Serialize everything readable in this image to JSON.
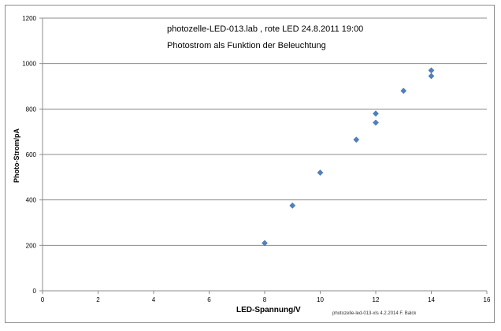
{
  "chart_data": {
    "type": "scatter",
    "title": "photozelle-LED-013.lab , rote LED  24.8.2011 19:00",
    "subtitle": "Photostrom als Funktion der Beleuchtung",
    "xlabel": "LED-Spannung/V",
    "ylabel": "Photo-Strom/pA",
    "annotation": "photozelle-led-013-xls 4.2.2014 F. Balck",
    "xlim": [
      0,
      16
    ],
    "ylim": [
      0,
      1200
    ],
    "xticks": [
      0,
      2,
      4,
      6,
      8,
      10,
      12,
      14,
      16
    ],
    "yticks": [
      0,
      200,
      400,
      600,
      800,
      1000,
      1200
    ],
    "grid": "horizontal",
    "marker_color": "#4f81bd",
    "points": [
      {
        "x": 8,
        "y": 210
      },
      {
        "x": 9,
        "y": 375
      },
      {
        "x": 10,
        "y": 520
      },
      {
        "x": 11.3,
        "y": 665
      },
      {
        "x": 12,
        "y": 740
      },
      {
        "x": 12,
        "y": 780
      },
      {
        "x": 13,
        "y": 880
      },
      {
        "x": 14,
        "y": 945
      },
      {
        "x": 14,
        "y": 970
      }
    ]
  }
}
